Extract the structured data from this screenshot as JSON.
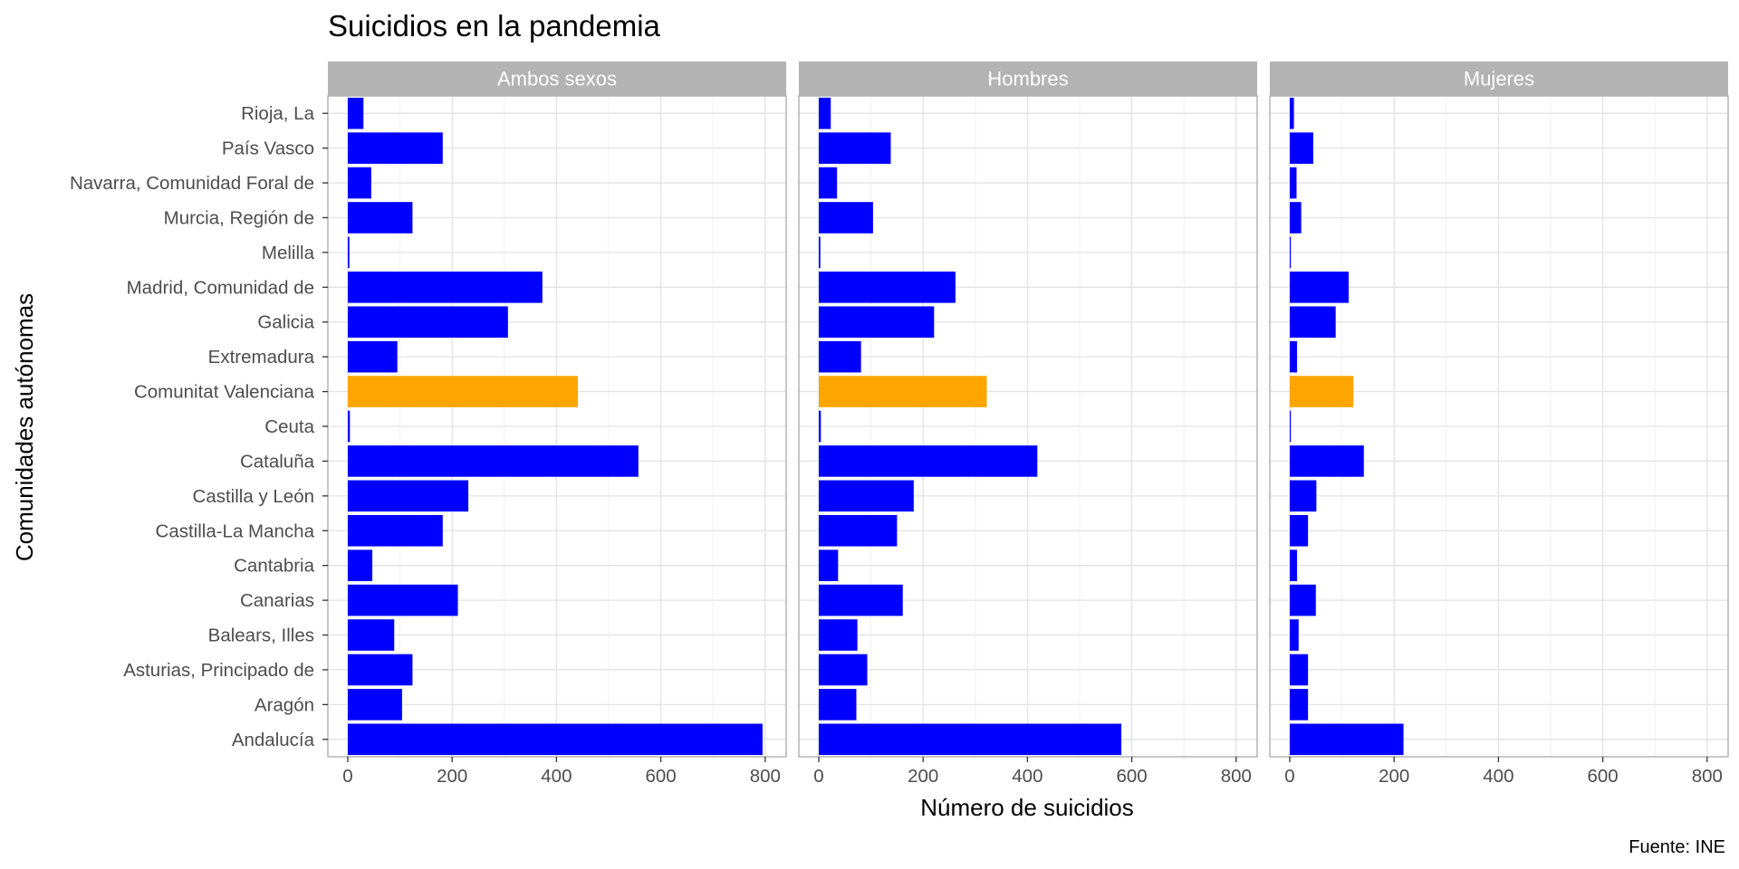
{
  "chart_data": {
    "type": "bar",
    "orientation": "horizontal",
    "title": "Suicidios en la pandemia",
    "xlabel": "Número de suicidios",
    "ylabel": "Comunidades autónomas",
    "caption": "Fuente: INE",
    "xlim": [
      0,
      800
    ],
    "xticks": [
      0,
      200,
      400,
      600,
      800
    ],
    "grid": true,
    "colors": {
      "default": "#0000ff",
      "highlight": "#ffa500"
    },
    "highlight_category": "Comunitat Valenciana",
    "categories": [
      "Rioja, La",
      "País Vasco",
      "Navarra, Comunidad Foral de",
      "Murcia, Región de",
      "Melilla",
      "Madrid, Comunidad de",
      "Galicia",
      "Extremadura",
      "Comunitat Valenciana",
      "Ceuta",
      "Cataluña",
      "Castilla y León",
      "Castilla-La Mancha",
      "Cantabria",
      "Canarias",
      "Balears, Illes",
      "Asturias, Principado de",
      "Aragón",
      "Andalucía"
    ],
    "panels": [
      {
        "name": "Ambos sexos",
        "values": [
          30,
          182,
          45,
          124,
          3,
          373,
          307,
          95,
          441,
          4,
          557,
          231,
          182,
          47,
          211,
          89,
          124,
          104,
          795
        ]
      },
      {
        "name": "Hombres",
        "values": [
          23,
          138,
          35,
          104,
          3,
          262,
          221,
          81,
          322,
          4,
          419,
          182,
          150,
          37,
          161,
          74,
          93,
          72,
          580
        ]
      },
      {
        "name": "Mujeres",
        "values": [
          8,
          45,
          13,
          22,
          1,
          113,
          88,
          14,
          122,
          1,
          142,
          51,
          35,
          14,
          50,
          17,
          35,
          35,
          218
        ]
      }
    ]
  }
}
